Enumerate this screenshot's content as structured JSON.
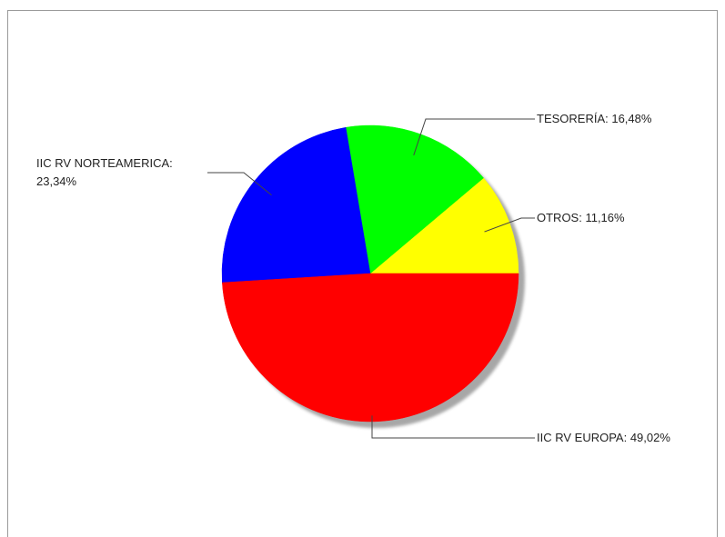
{
  "chart_data": {
    "type": "pie",
    "title": "",
    "slices": [
      {
        "label_lines": [
          "OTROS: 11,16%"
        ],
        "value": 11.16,
        "color": "#ffff00"
      },
      {
        "label_lines": [
          "TESORERÍA: 16,48%"
        ],
        "value": 16.48,
        "color": "#00ff00"
      },
      {
        "label_lines": [
          "IIC RV NORTEAMERICA:",
          "23,34%"
        ],
        "value": 23.34,
        "color": "#0000ff"
      },
      {
        "label_lines": [
          "IIC RV EUROPA: 49,02%"
        ],
        "value": 49.02,
        "color": "#ff0000"
      }
    ],
    "start_angle_deg": 0,
    "direction": "counterclockwise",
    "shadow": true,
    "legend": "none"
  }
}
